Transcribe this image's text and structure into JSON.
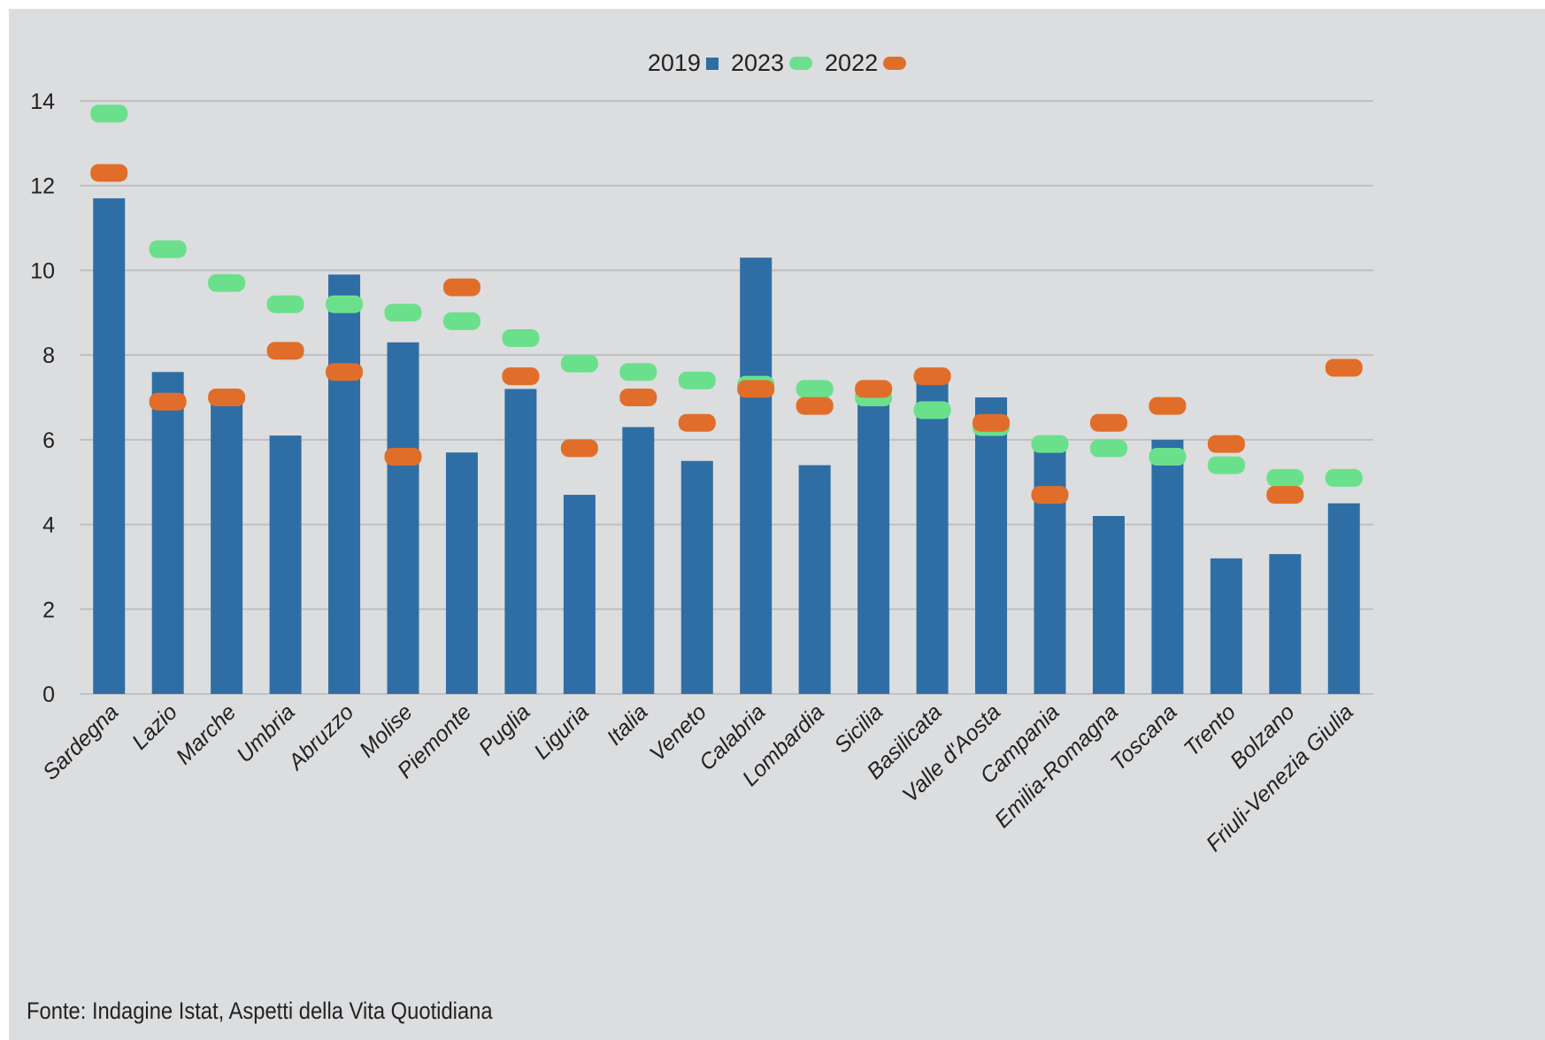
{
  "source": "Fonte: Indagine Istat, Aspetti della Vita Quotidiana",
  "colors": {
    "2019": "#2f6ea5",
    "2023": "#6be08c",
    "2022": "#e06e2a",
    "grid": "#bfc0c2",
    "background": "#dcdddf"
  },
  "chart_data": {
    "type": "bar",
    "title": "",
    "xlabel": "",
    "ylabel": "",
    "ylim": [
      0,
      14
    ],
    "yticks": [
      0,
      2,
      4,
      6,
      8,
      10,
      12,
      14
    ],
    "grid": true,
    "legend_position": "top-center",
    "categories": [
      "Sardegna",
      "Lazio",
      "Marche",
      "Umbria",
      "Abruzzo",
      "Molise",
      "Piemonte",
      "Puglia",
      "Liguria",
      "Italia",
      "Veneto",
      "Calabria",
      "Lombardia",
      "Sicilia",
      "Basilicata",
      "Valle d'Aosta",
      "Campania",
      "Emilia-Romagna",
      "Toscana",
      "Trento",
      "Bolzano",
      "Friuli-Venezia Giulia"
    ],
    "series": [
      {
        "name": "2019",
        "mark": "bar",
        "values": [
          11.7,
          7.6,
          7.0,
          6.1,
          9.9,
          8.3,
          5.7,
          7.2,
          4.7,
          6.3,
          5.5,
          10.3,
          5.4,
          7.2,
          7.5,
          7.0,
          5.9,
          4.2,
          6.0,
          3.2,
          3.3,
          4.5
        ]
      },
      {
        "name": "2023",
        "mark": "dash",
        "values": [
          13.7,
          10.5,
          9.7,
          9.2,
          9.2,
          9.0,
          8.8,
          8.4,
          7.8,
          7.6,
          7.4,
          7.3,
          7.2,
          7.0,
          6.7,
          6.3,
          5.9,
          5.8,
          5.6,
          5.4,
          5.1,
          5.1
        ]
      },
      {
        "name": "2022",
        "mark": "dash",
        "values": [
          12.3,
          6.9,
          7.0,
          8.1,
          7.6,
          5.6,
          9.6,
          7.5,
          5.8,
          7.0,
          6.4,
          7.2,
          6.8,
          7.2,
          7.5,
          6.4,
          4.7,
          6.4,
          6.8,
          5.9,
          4.7,
          7.7
        ]
      }
    ]
  }
}
